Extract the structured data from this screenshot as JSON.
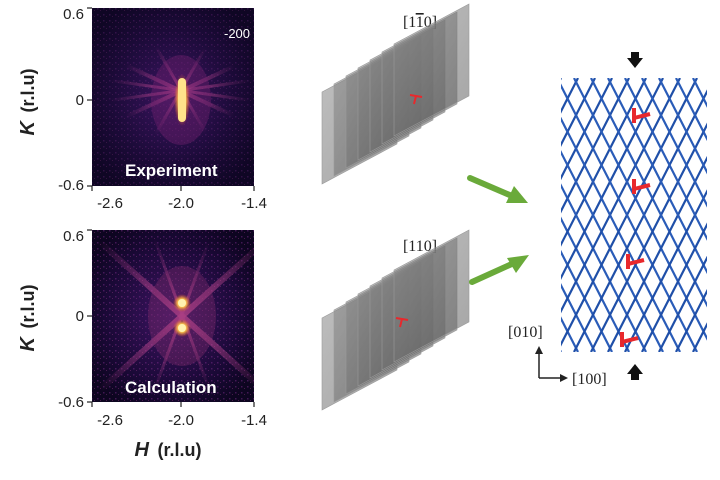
{
  "maps": {
    "top": {
      "label": "Experiment",
      "reflection": "-200"
    },
    "bottom": {
      "label": "Calculation"
    }
  },
  "axes": {
    "x_ticks": [
      "-2.6",
      "-2.0",
      "-1.4"
    ],
    "y_ticks": [
      "0.6",
      "0",
      "-0.6"
    ],
    "x_label_var": "H",
    "x_label_unit": "(r.l.u)",
    "y_label_var": "K",
    "y_label_unit": "(r.l.u)"
  },
  "stacks": {
    "top_label_pre": "[1",
    "top_label_bar": "1",
    "top_label_post": "0]",
    "bottom_label": "[110]"
  },
  "lattice": {
    "dir_vertical": "[010]",
    "dir_horizontal": "[100]"
  },
  "colors": {
    "map_background": "#1a0a2e",
    "hot_spot": "#ffe28a",
    "arrow_green": "#6aaa3a",
    "lattice_blue": "#1f4fa8",
    "dislocation_red": "#e8282c"
  }
}
